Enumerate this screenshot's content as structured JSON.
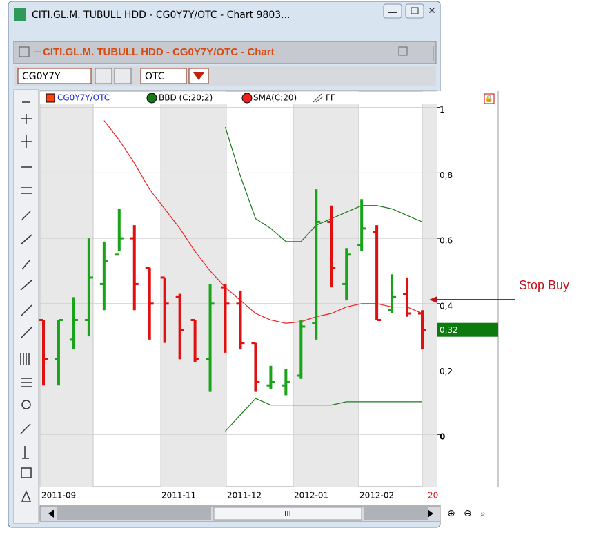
{
  "window": {
    "title": "CITI.GL.M. TUBULL HDD - CG0Y7Y/OTC - Chart 9803...",
    "panel_title": "CITI.GL.M. TUBULL HDD - CG0Y7Y/OTC - Chart",
    "symbol": "CG0Y7Y",
    "exchange": "OTC",
    "scroll_label": "III"
  },
  "chart_data": {
    "type": "ohlc",
    "price_name": "CG0Y7Y/OTC",
    "tool_name": "FF",
    "color_up": "#19a319",
    "color_down": "#e01010",
    "open": [
      0.35,
      0.23,
      0.29,
      0.35,
      0.46,
      0.55,
      0.6,
      0.51,
      0.48,
      0.42,
      0.35,
      0.23,
      0.45,
      0.4,
      0.28,
      0.15,
      0.15,
      0.18,
      0.34,
      0.65,
      0.46,
      0.58,
      0.62,
      0.38,
      0.43,
      0.37
    ],
    "high": [
      0.35,
      0.35,
      0.42,
      0.6,
      0.59,
      0.69,
      0.64,
      0.51,
      0.48,
      0.43,
      0.35,
      0.46,
      0.46,
      0.44,
      0.28,
      0.21,
      0.2,
      0.35,
      0.75,
      0.7,
      0.57,
      0.72,
      0.64,
      0.49,
      0.48,
      0.38
    ],
    "low": [
      0.15,
      0.15,
      0.26,
      0.3,
      0.38,
      0.56,
      0.38,
      0.29,
      0.28,
      0.23,
      0.22,
      0.13,
      0.25,
      0.26,
      0.13,
      0.14,
      0.12,
      0.17,
      0.29,
      0.45,
      0.41,
      0.56,
      0.35,
      0.37,
      0.36,
      0.26
    ],
    "close": [
      0.23,
      0.35,
      0.35,
      0.48,
      0.53,
      0.6,
      0.46,
      0.4,
      0.4,
      0.32,
      0.23,
      0.4,
      0.4,
      0.28,
      0.16,
      0.16,
      0.16,
      0.33,
      0.65,
      0.51,
      0.55,
      0.63,
      0.35,
      0.42,
      0.37,
      0.32
    ],
    "series": [
      {
        "name": "SMA(C;20)",
        "color": "#f02020",
        "values": [
          null,
          null,
          null,
          null,
          0.96,
          0.9,
          0.83,
          0.75,
          0.69,
          0.63,
          0.56,
          0.5,
          0.45,
          0.41,
          0.37,
          0.35,
          0.34,
          0.345,
          0.36,
          0.37,
          0.39,
          0.4,
          0.4,
          0.39,
          0.39,
          0.37
        ]
      }
    ],
    "bands": {
      "name": "BBD (C;20;2)",
      "color": "#1a7a1a",
      "upper": [
        null,
        null,
        null,
        null,
        null,
        null,
        null,
        null,
        null,
        null,
        null,
        null,
        0.94,
        0.79,
        0.66,
        0.63,
        0.59,
        0.59,
        0.64,
        0.66,
        0.68,
        0.7,
        0.7,
        0.69,
        0.67,
        0.65
      ],
      "lower": [
        null,
        null,
        null,
        null,
        null,
        null,
        null,
        null,
        null,
        null,
        null,
        null,
        0.01,
        0.06,
        0.11,
        0.09,
        0.09,
        0.09,
        0.09,
        0.09,
        0.1,
        0.1,
        0.1,
        0.1,
        0.1,
        0.1
      ]
    },
    "ylim": [
      -0.16,
      1.05
    ],
    "yticks": [
      0,
      {
        "value": 0.2,
        "label": "0,2"
      },
      {
        "value": 0.4,
        "label": "0,4"
      },
      {
        "value": 0.6,
        "label": "0,6"
      },
      {
        "value": 0.8,
        "label": "0,8"
      },
      1
    ],
    "last_price": {
      "value": 0.32,
      "label": "0,32"
    },
    "xtick_labels": [
      "2011-09",
      "2011-11",
      "2011-12",
      "2012-01",
      "2012-02",
      "20"
    ],
    "annotation": "Stop Buy"
  }
}
